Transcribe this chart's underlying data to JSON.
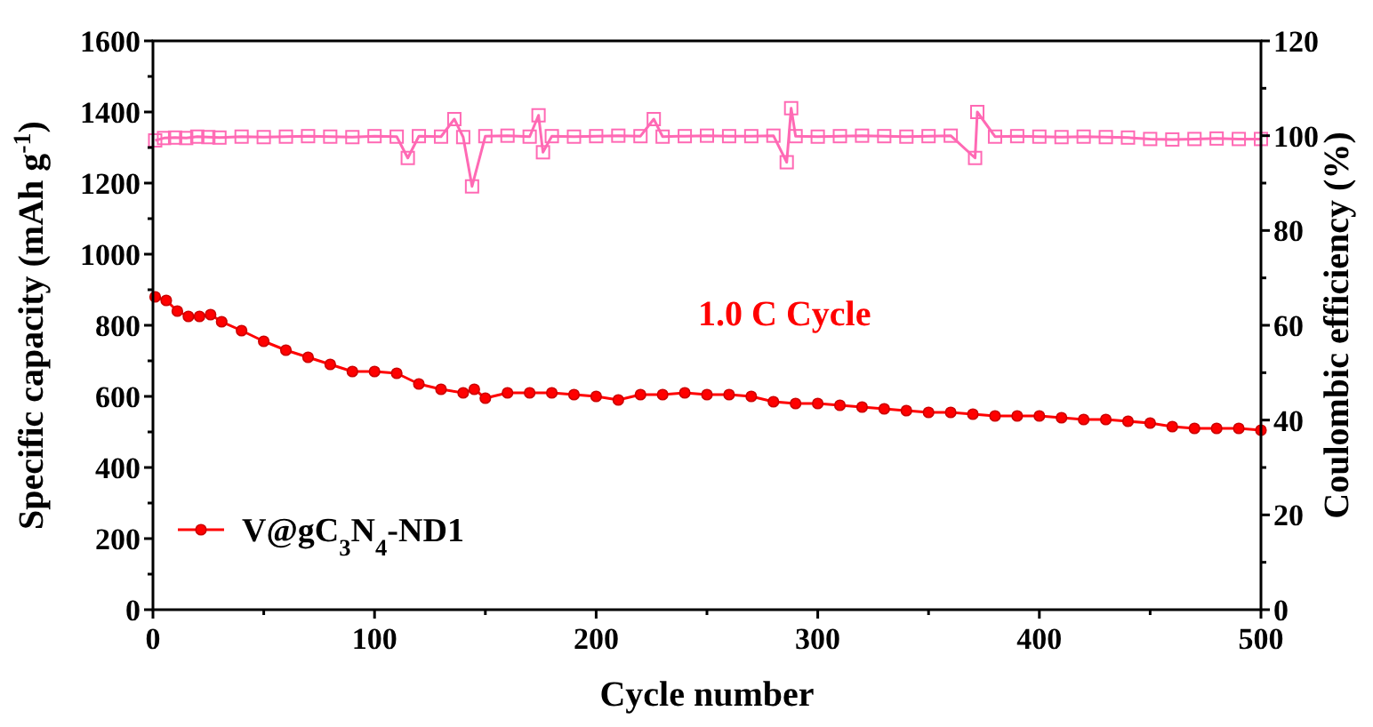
{
  "chart_data": {
    "type": "line",
    "xlabel": "Cycle number",
    "ylabel": "Specific capacity (mAh g$^{-1}$)",
    "y2label": "Coulombic efficiency (%)",
    "annotations": [
      "1.0 C Cycle"
    ],
    "xlim": [
      0,
      500
    ],
    "xticks": [
      0,
      {
        "value": 50,
        "label": null
      },
      100,
      {
        "value": 150,
        "label": null
      },
      200,
      {
        "value": 250,
        "label": null
      },
      300,
      {
        "value": 350,
        "label": null
      },
      400,
      {
        "value": 450,
        "label": null
      },
      500
    ],
    "ylim": [
      0,
      1600
    ],
    "yticks": [
      0,
      {
        "value": 100,
        "label": null
      },
      200,
      {
        "value": 300,
        "label": null
      },
      400,
      {
        "value": 500,
        "label": null
      },
      600,
      {
        "value": 700,
        "label": null
      },
      800,
      {
        "value": 900,
        "label": null
      },
      1000,
      {
        "value": 1100,
        "label": null
      },
      1200,
      {
        "value": 1300,
        "label": null
      },
      1400,
      {
        "value": 1500,
        "label": null
      },
      1600
    ],
    "y2lim": [
      0,
      120
    ],
    "y2ticks": [
      0,
      {
        "value": 10,
        "label": null
      },
      20,
      {
        "value": 30,
        "label": null
      },
      40,
      {
        "value": 50,
        "label": null
      },
      60,
      {
        "value": 70,
        "label": null
      },
      80,
      {
        "value": 90,
        "label": null
      },
      100,
      {
        "value": 110,
        "label": null
      },
      120
    ],
    "grid": false,
    "legend": "bottom left",
    "series": [
      {
        "name": "V@gC$_{3}$N$_{4}$-ND1",
        "color": "#ff0000",
        "marker": "circle",
        "x": [
          1,
          6,
          11,
          16,
          21,
          26,
          31,
          40,
          50,
          60,
          70,
          80,
          90,
          100,
          110,
          120,
          130,
          140,
          145,
          150,
          160,
          170,
          180,
          190,
          200,
          210,
          220,
          230,
          240,
          250,
          260,
          270,
          280,
          290,
          300,
          310,
          320,
          330,
          340,
          350,
          360,
          370,
          380,
          390,
          400,
          410,
          420,
          430,
          440,
          450,
          460,
          470,
          480,
          490,
          500
        ],
        "values": [
          880,
          870,
          840,
          825,
          825,
          830,
          810,
          785,
          755,
          730,
          710,
          690,
          670,
          670,
          665,
          635,
          620,
          610,
          620,
          595,
          610,
          610,
          610,
          605,
          600,
          590,
          605,
          605,
          610,
          605,
          605,
          600,
          585,
          580,
          580,
          575,
          570,
          565,
          560,
          555,
          555,
          550,
          545,
          545,
          545,
          540,
          535,
          535,
          530,
          525,
          515,
          510,
          510,
          510,
          505
        ]
      },
      {
        "color": "#ff69b4",
        "marker": "square",
        "axis": "y2",
        "x": [
          1,
          5,
          10,
          15,
          20,
          25,
          30,
          40,
          50,
          60,
          70,
          80,
          90,
          100,
          110,
          115,
          120,
          130,
          136,
          140,
          144,
          150,
          160,
          170,
          174,
          176,
          180,
          190,
          200,
          210,
          220,
          226,
          230,
          240,
          250,
          260,
          270,
          280,
          286,
          288,
          290,
          300,
          310,
          320,
          330,
          340,
          350,
          360,
          371,
          372,
          380,
          390,
          400,
          410,
          420,
          430,
          440,
          450,
          460,
          470,
          480,
          490,
          500
        ],
        "values": [
          99.0,
          99.5,
          99.6,
          99.5,
          99.8,
          99.7,
          99.6,
          99.8,
          99.7,
          99.8,
          99.9,
          99.8,
          99.7,
          99.9,
          99.8,
          95.3,
          99.9,
          99.8,
          103.5,
          99.7,
          89.3,
          99.9,
          100.0,
          99.8,
          104.3,
          96.5,
          99.9,
          99.8,
          99.9,
          100.0,
          99.9,
          103.5,
          99.8,
          99.9,
          100.0,
          99.9,
          99.9,
          100.0,
          94.4,
          105.8,
          99.9,
          99.8,
          99.9,
          100.0,
          99.9,
          99.8,
          99.9,
          100.0,
          95.3,
          105.0,
          99.8,
          99.9,
          99.8,
          99.7,
          99.8,
          99.7,
          99.6,
          99.3,
          99.2,
          99.3,
          99.4,
          99.3,
          99.3
        ]
      }
    ]
  }
}
